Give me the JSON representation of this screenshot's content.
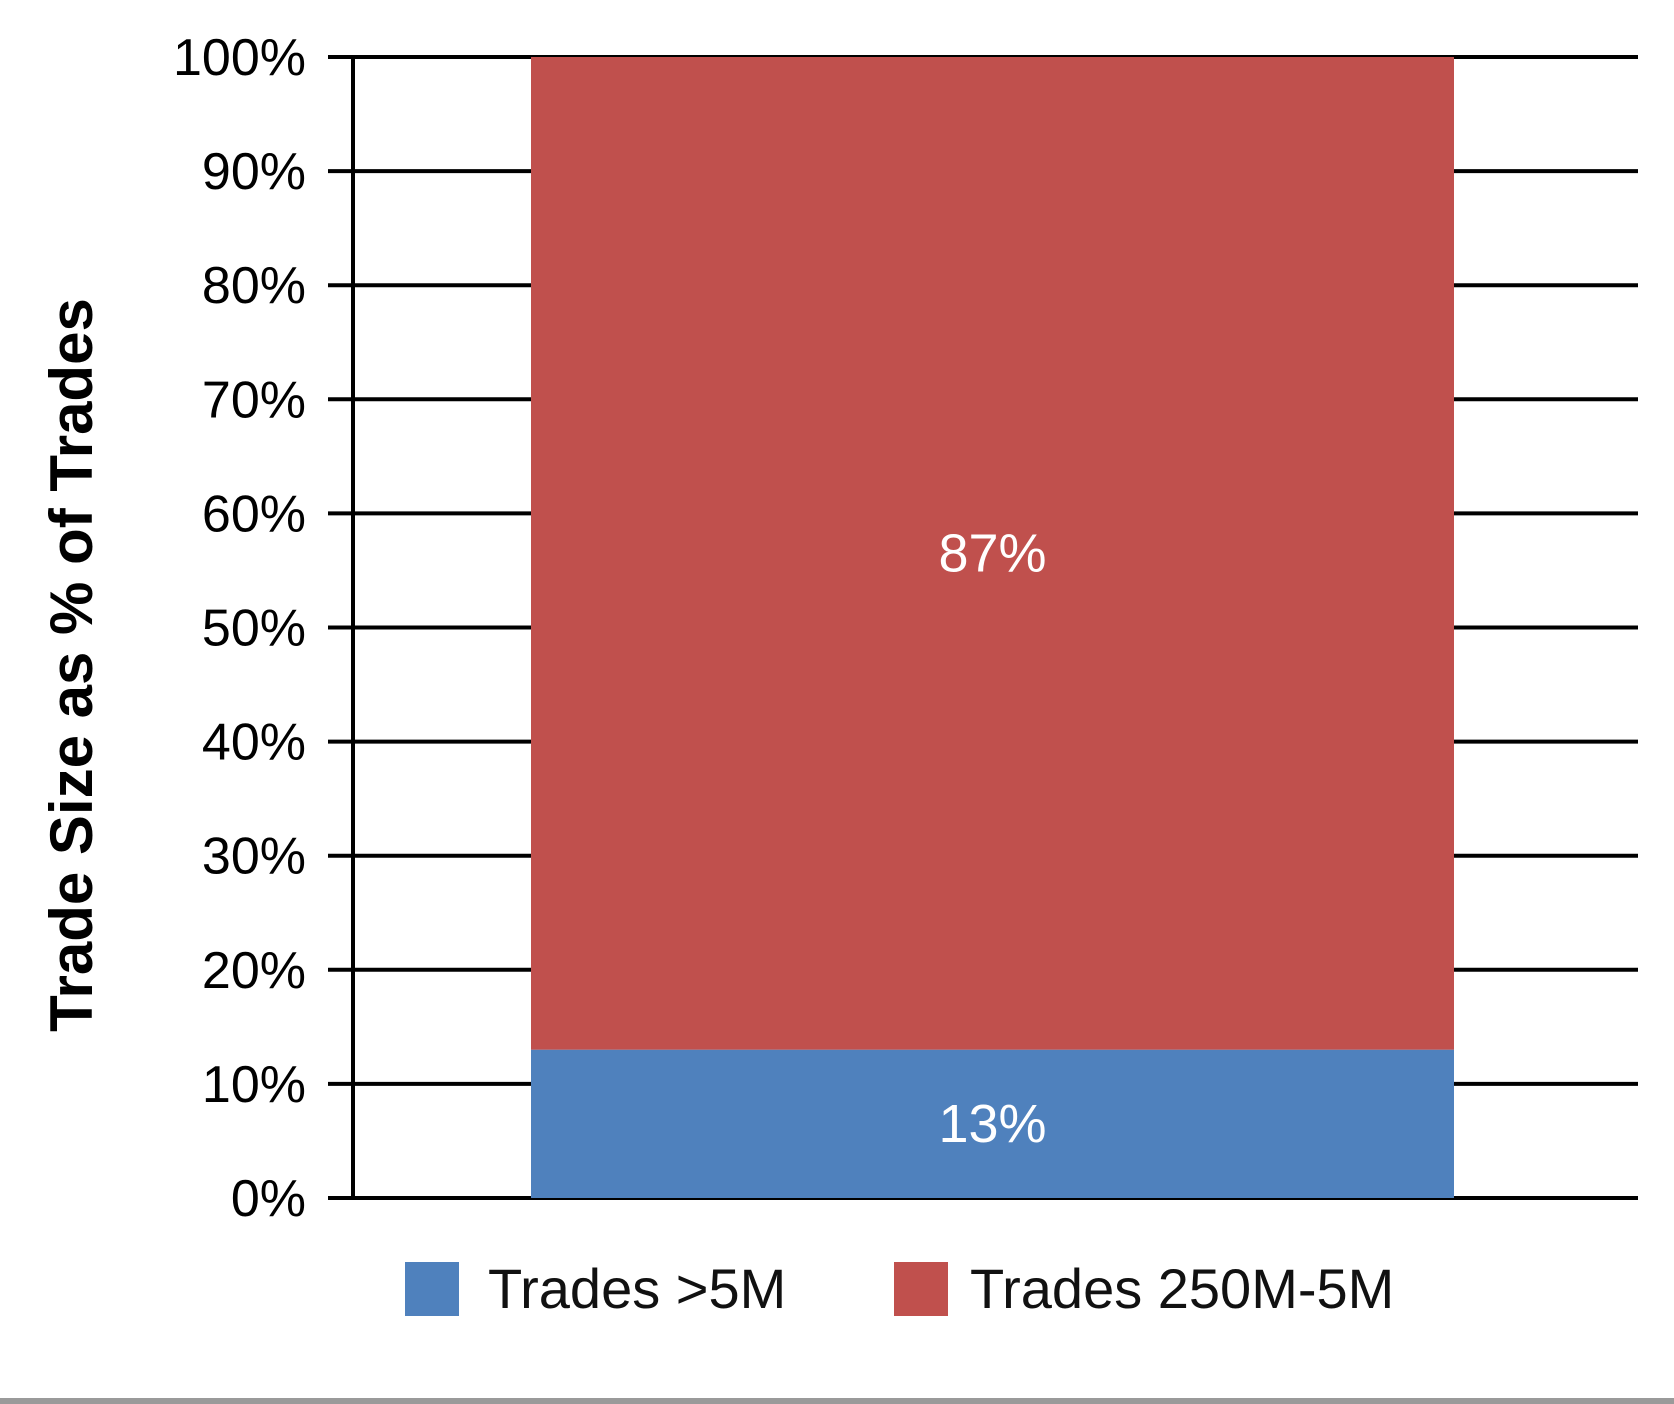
{
  "chart_data": {
    "type": "bar",
    "stacked": true,
    "categories": [
      ""
    ],
    "series": [
      {
        "name": "Trades >5M",
        "values": [
          13
        ],
        "label": "13%",
        "color": "#4f81bd"
      },
      {
        "name": "Trades 250M-5M",
        "values": [
          87
        ],
        "label": "87%",
        "color": "#c0504d"
      }
    ],
    "title": "",
    "xlabel": "",
    "ylabel": "Trade Size as % of Trades",
    "ylim": [
      0,
      100
    ],
    "yticks": [
      0,
      10,
      20,
      30,
      40,
      50,
      60,
      70,
      80,
      90,
      100
    ],
    "ytick_labels": [
      "0%",
      "10%",
      "20%",
      "30%",
      "40%",
      "50%",
      "60%",
      "70%",
      "80%",
      "90%",
      "100%"
    ],
    "grid": true,
    "legend": "bottom"
  }
}
